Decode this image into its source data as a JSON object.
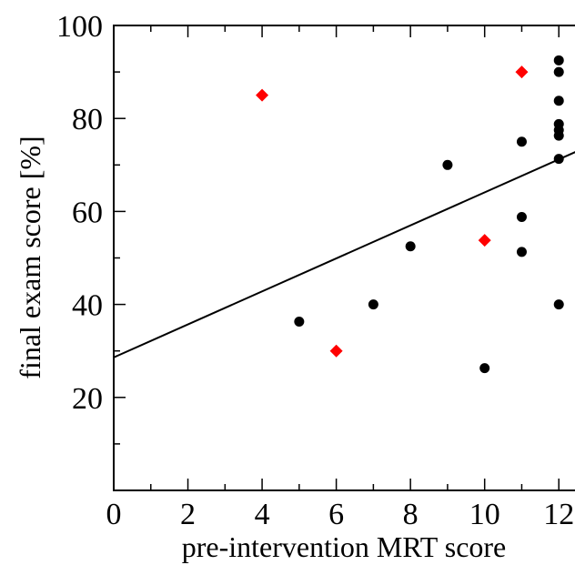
{
  "chart_data": {
    "type": "scatter",
    "xlabel": "pre-intervention MRT score",
    "ylabel": "final exam score [%]",
    "xlim": [
      0,
      13
    ],
    "ylim": [
      0,
      100
    ],
    "x_ticks": [
      "0",
      "2",
      "4",
      "6",
      "8",
      "10",
      "12"
    ],
    "y_ticks": [
      "20",
      "40",
      "60",
      "80",
      "100"
    ],
    "series": [
      {
        "color": "#000000",
        "marker": "circle",
        "points": [
          [
            5,
            36.3
          ],
          [
            7,
            40
          ],
          [
            8,
            52.5
          ],
          [
            9,
            70
          ],
          [
            10,
            26.3
          ],
          [
            11,
            75
          ],
          [
            11,
            58.8
          ],
          [
            11,
            51.3
          ],
          [
            12,
            92.5
          ],
          [
            12,
            90
          ],
          [
            12,
            83.8
          ],
          [
            12,
            78.8
          ],
          [
            12,
            77.5
          ],
          [
            12,
            76.3
          ],
          [
            12,
            71.3
          ],
          [
            12,
            40
          ]
        ]
      },
      {
        "color": "#ff0000",
        "marker": "diamond",
        "points": [
          [
            4,
            85
          ],
          [
            6,
            30
          ],
          [
            10,
            53.8
          ],
          [
            11,
            90
          ]
        ]
      }
    ],
    "fit_line": {
      "intercept": 28.6,
      "slope": 3.55,
      "color": "#000000"
    },
    "grid": false
  }
}
